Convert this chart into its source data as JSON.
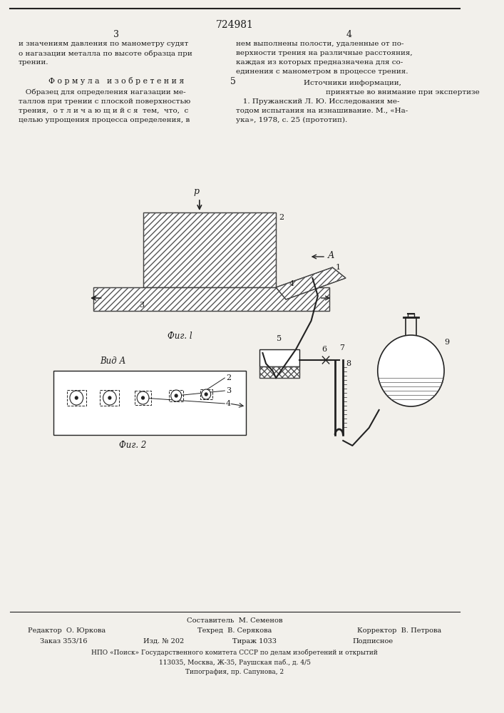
{
  "bg_color": "#f2f0eb",
  "text_color": "#1a1a1a",
  "page_number": "724981",
  "col_left": "3",
  "col_right": "4",
  "col_num": "5",
  "top_left_1": "и значениям давления по манометру судят",
  "top_left_2": "о нагазации металла по высоте образца при",
  "top_left_3": "трении.",
  "formula_title": "Ф о р м у л а   и з о б р е т е н и я",
  "formula_1": "   Образец для определения нагазации ме-",
  "formula_2": "таллов при трении с плоской поверхностью",
  "formula_3": "трения,  о т л и ч а ю щ и й с я  тем,  что,  с",
  "formula_4": "целью упрощения процесса определения, в",
  "top_right_1": "нем выполнены полости, удаленные от по-",
  "top_right_2": "верхности трения на различные расстояния,",
  "top_right_3": "каждая из которых предназначена для со-",
  "top_right_4": "единения с манометром в процессе трения.",
  "sources_1": "Источники информации,",
  "sources_2": "принятые во внимание при экспертизе",
  "source_1a": "   1. Пружанский Л. Ю. Исследования ме-",
  "source_1b": "тодом испытания на изнашивание. М., «На-",
  "source_1c": "ука», 1978, с. 25 (прототип).",
  "fig1_label": "Фиг. l",
  "fig2_label": "Фиг. 2",
  "vid_a": "Вид А",
  "footer_author": "Составитель  М. Семенов",
  "footer_editor": "Редактор  О. Юркова",
  "footer_tech": "Техред  В. Серякова",
  "footer_corrector": "Корректор  В. Петрова",
  "footer_order": "Заказ 353/16",
  "footer_ed": "Изд. № 202",
  "footer_print": "Тираж 1033",
  "footer_sub": "Подписное",
  "footer_npo": "НПО «Поиск» Государственного комитета СССР по делам изобретений и открытий",
  "footer_addr": "113035, Москва, Ж-35, Раушская паб., д. 4/5",
  "footer_typo": "Типография, пр. Сапунова, 2",
  "hc": "#555555",
  "lc": "#222222"
}
